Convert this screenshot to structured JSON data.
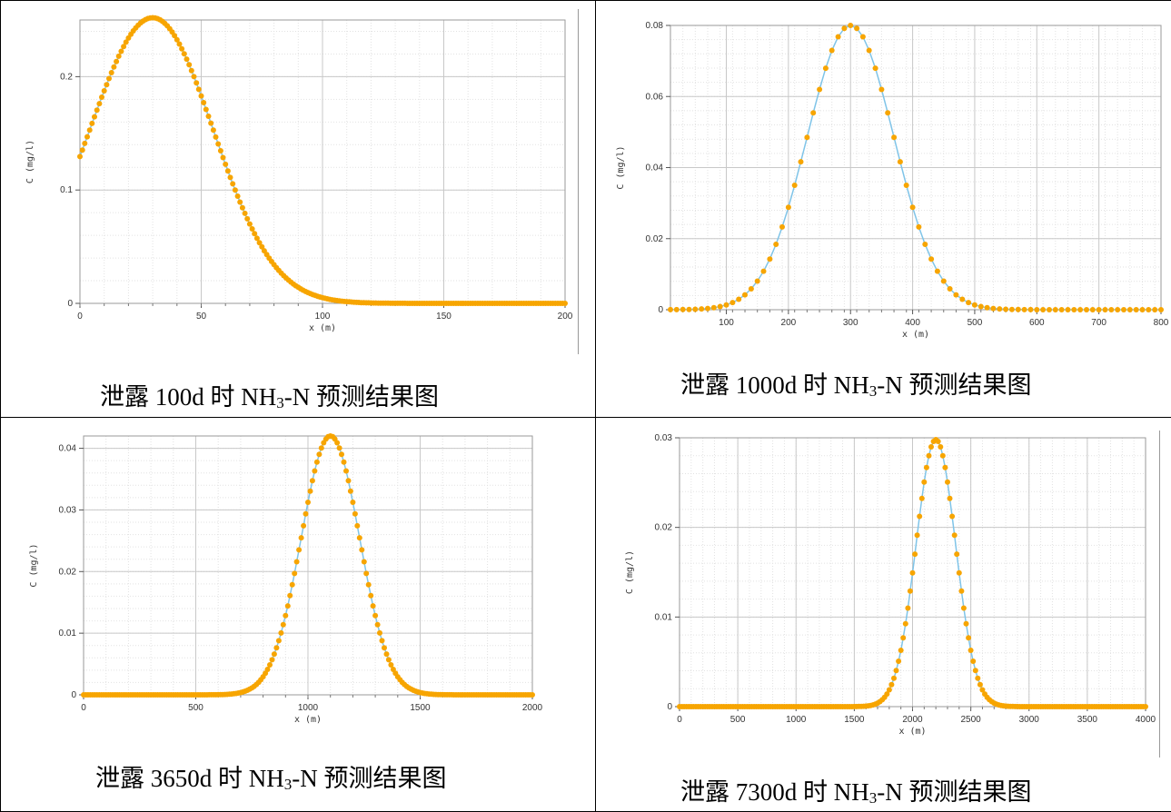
{
  "panels": [
    {
      "caption": {
        "prefix": "泄露 100d 时 NH",
        "sub": "3",
        "suffix": "-N 预测结果图"
      },
      "chart_data": {
        "type": "scatter",
        "line_color": "#7fc4e8",
        "marker_color": "#f7a500",
        "xlabel": "x (m)",
        "ylabel": "C (mg/l)",
        "xlim": [
          0,
          200
        ],
        "ylim": [
          0,
          0.25
        ],
        "xticks": [
          0,
          50,
          100,
          150,
          200
        ],
        "yticks": [
          0,
          0.1,
          0.2
        ],
        "curve": {
          "peak_x": 30,
          "peak_y": 0.252,
          "sigma_left": 26,
          "sigma_right": 25,
          "x_step": 1
        },
        "series": []
      }
    },
    {
      "caption": {
        "prefix": "泄露 1000d 时 NH",
        "sub": "3",
        "suffix": "-N 预测结果图"
      },
      "chart_data": {
        "type": "line",
        "line_color": "#7fc4e8",
        "marker_color": "#f7a500",
        "xlabel": "x (m)",
        "ylabel": "C (mg/l)",
        "xlim": [
          10,
          800
        ],
        "ylim": [
          0,
          0.08
        ],
        "xticks": [
          100,
          200,
          300,
          400,
          500,
          600,
          700,
          800
        ],
        "yticks": [
          0,
          0.02,
          0.04,
          0.06,
          0.08
        ],
        "curve": {
          "peak_x": 300,
          "peak_y": 0.08,
          "sigma_left": 70,
          "sigma_right": 70,
          "x_step": 10
        },
        "series": []
      }
    },
    {
      "caption": {
        "prefix": "泄露 3650d 时 NH",
        "sub": "3",
        "suffix": "-N 预测结果图"
      },
      "chart_data": {
        "type": "line",
        "line_color": "#7fc4e8",
        "marker_color": "#f7a500",
        "xlabel": "x (m)",
        "ylabel": "C (mg/l)",
        "xlim": [
          0,
          2000
        ],
        "ylim": [
          0,
          0.042
        ],
        "xticks": [
          0,
          500,
          1000,
          1500,
          2000
        ],
        "yticks": [
          0,
          0.01,
          0.02,
          0.03,
          0.04
        ],
        "curve": {
          "peak_x": 1100,
          "peak_y": 0.042,
          "sigma_left": 130,
          "sigma_right": 130,
          "x_step": 10
        },
        "series": []
      }
    },
    {
      "caption": {
        "prefix": "泄露 7300d 时 NH",
        "sub": "3",
        "suffix": "-N 预测结果图"
      },
      "chart_data": {
        "type": "line",
        "line_color": "#7fc4e8",
        "marker_color": "#f7a500",
        "xlabel": "x (m)",
        "ylabel": "C (mg/l)",
        "xlim": [
          0,
          4000
        ],
        "ylim": [
          0,
          0.03
        ],
        "xticks": [
          0,
          500,
          1000,
          1500,
          2000,
          2500,
          3000,
          3500,
          4000
        ],
        "yticks": [
          0,
          0.01,
          0.02,
          0.03
        ],
        "curve": {
          "peak_x": 2200,
          "peak_y": 0.0298,
          "sigma_left": 170,
          "sigma_right": 170,
          "x_step": 20
        },
        "series": []
      }
    }
  ]
}
